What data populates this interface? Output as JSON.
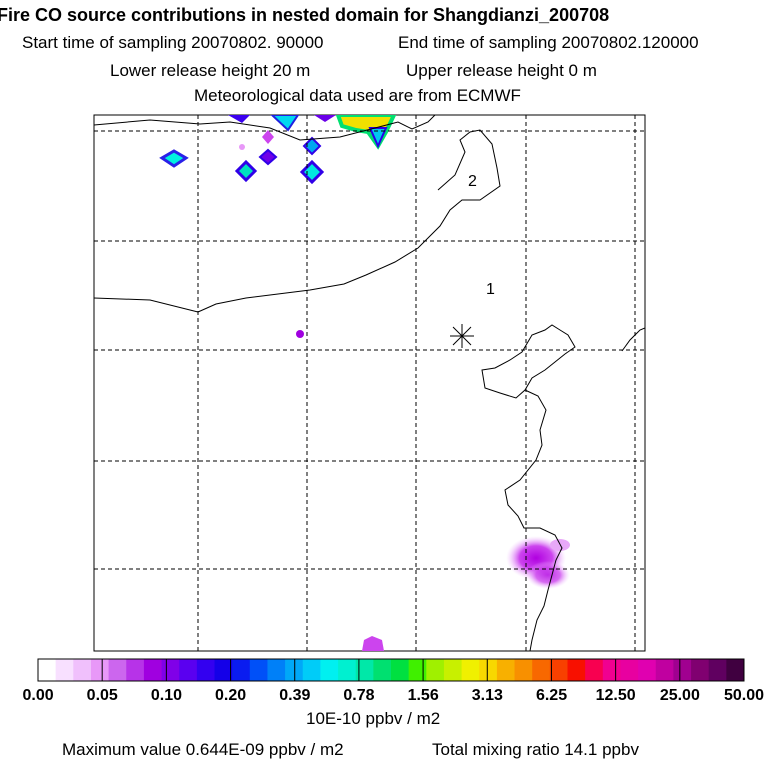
{
  "header": {
    "title": "Fire CO source contributions in nested domain for Shangdianzi_200708",
    "start_label": "Start time of sampling 20070802. 90000",
    "end_label": "End time of sampling 20070802.120000",
    "lower_label": "Lower release height   20 m",
    "upper_label": "Upper release height    0 m",
    "met_label": "Meteorological data used are from ECMWF"
  },
  "chart_data": {
    "type": "heatmap",
    "title": "Fire CO source contributions in nested domain for Shangdianzi_200708",
    "map_annotations": [
      "2",
      "1"
    ],
    "station_marker": "asterisk",
    "colorbar": {
      "tick_labels": [
        "0.00",
        "0.05",
        "0.10",
        "0.20",
        "0.39",
        "0.78",
        "1.56",
        "3.13",
        "6.25",
        "12.50",
        "25.00",
        "50.00"
      ],
      "tick_values": [
        0.0,
        0.05,
        0.1,
        0.2,
        0.39,
        0.78,
        1.56,
        3.13,
        6.25,
        12.5,
        25.0,
        50.0
      ],
      "colors": [
        "#ffffff",
        "#f8e0ff",
        "#f0c0fc",
        "#e898f8",
        "#cc66ee",
        "#b733e8",
        "#a000e0",
        "#8000e8",
        "#5a00f0",
        "#3300f0",
        "#1400e8",
        "#0a1cf0",
        "#0050f8",
        "#0080f8",
        "#00a8f8",
        "#00ccf8",
        "#00f0f0",
        "#00f0d0",
        "#00e8a8",
        "#00e070",
        "#00e040",
        "#40f000",
        "#a0f000",
        "#c8f000",
        "#f0f000",
        "#f8d800",
        "#f8b000",
        "#f89000",
        "#f86800",
        "#f84000",
        "#f81000",
        "#f80050",
        "#f00090",
        "#e800a0",
        "#e000b0",
        "#c000a0",
        "#a00090",
        "#800070",
        "#600060",
        "#400040"
      ],
      "unit": "10E-10 ppbv / m2"
    },
    "max_value_label": "Maximum value  0.644E-09 ppbv / m2",
    "total_label": "Total mixing ratio       14.1 ppbv",
    "max_value": 6.44e-10,
    "total_mixing_ratio": 14.1
  }
}
